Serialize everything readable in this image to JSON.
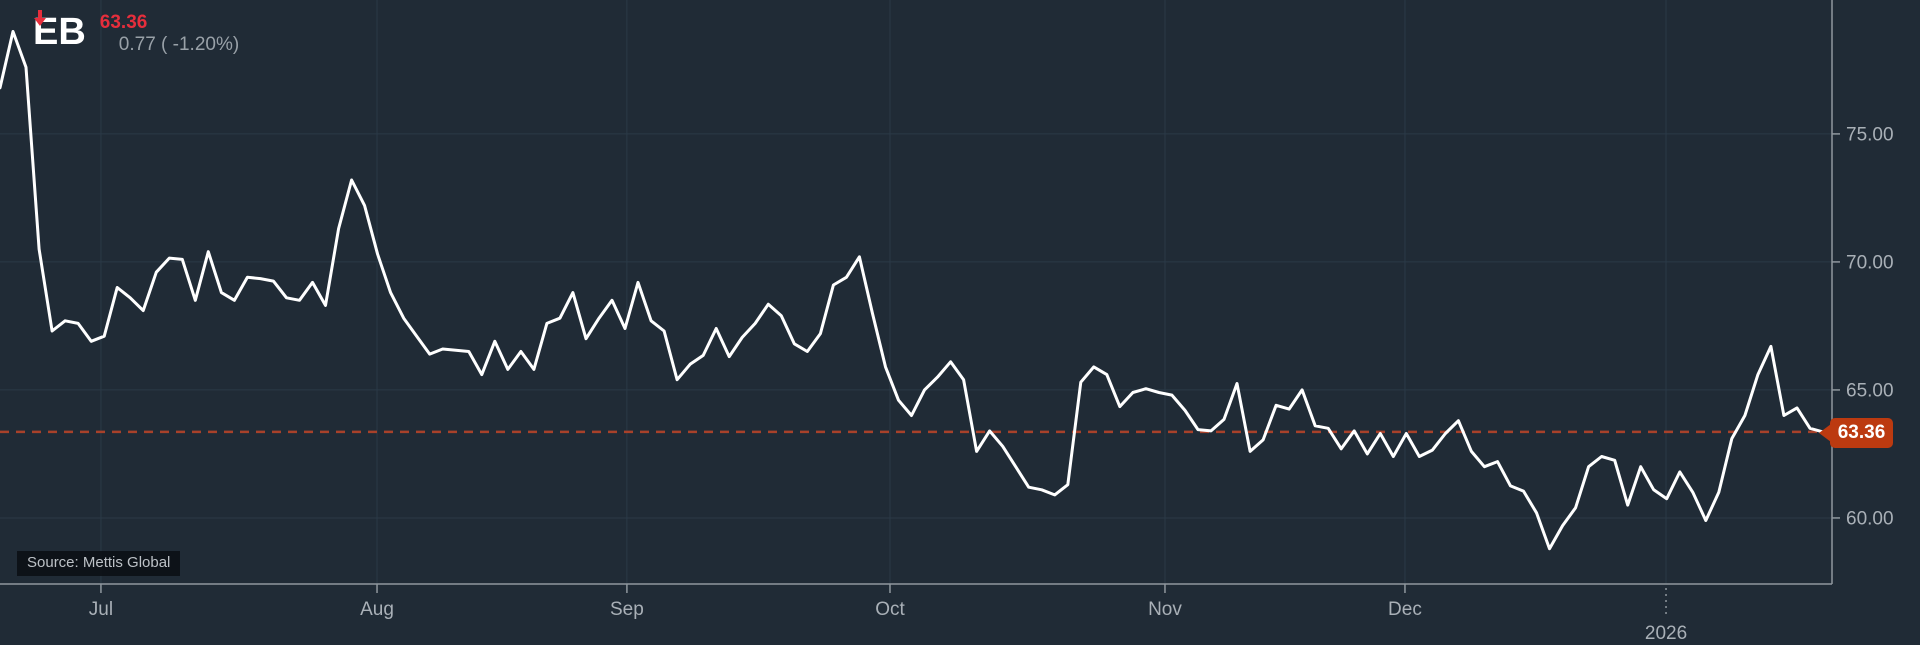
{
  "header": {
    "ticker": "EB",
    "price": "63.36",
    "change": "0.77 ( -1.20%)"
  },
  "source": {
    "label": "Source: Mettis Global"
  },
  "last_price_tag": "63.36",
  "colors": {
    "background": "#202b36",
    "grid": "#2b3a47",
    "axis": "#8f979e",
    "tick_label": "#a9b0b7",
    "series_line": "#ffffff",
    "price_red": "#e62e3c",
    "change_gray": "#99a1a8",
    "dashed_line": "#a8412a",
    "tag_background": "#bc3a10",
    "tag_text": "#ffffff"
  },
  "chart_data": {
    "type": "line",
    "title": "EB",
    "legend": "none",
    "grid": true,
    "y_ticks": [
      {
        "label": "75.00",
        "value": 75
      },
      {
        "label": "70.00",
        "value": 70
      },
      {
        "label": "65.00",
        "value": 65
      },
      {
        "label": "60.00",
        "value": 60
      }
    ],
    "y_range": [
      57.42,
      80.23
    ],
    "x_ticks": [
      {
        "label": "Jul",
        "pos": 0.0551,
        "is_year": false
      },
      {
        "label": "Aug",
        "pos": 0.2058,
        "is_year": false
      },
      {
        "label": "Sep",
        "pos": 0.3422,
        "is_year": false
      },
      {
        "label": "Oct",
        "pos": 0.4858,
        "is_year": false
      },
      {
        "label": "Nov",
        "pos": 0.6359,
        "is_year": false
      },
      {
        "label": "Dec",
        "pos": 0.7669,
        "is_year": false
      },
      {
        "label": "2026",
        "pos": 0.9094,
        "is_year": true
      }
    ],
    "last_price": 63.36,
    "series": [
      {
        "name": "EB",
        "values": [
          76.8,
          79.0,
          77.6,
          70.5,
          67.3,
          67.7,
          67.6,
          66.9,
          67.1,
          69.0,
          68.6,
          68.1,
          69.6,
          70.15,
          70.1,
          68.5,
          70.4,
          68.8,
          68.5,
          69.4,
          69.35,
          69.25,
          68.6,
          68.5,
          69.2,
          68.3,
          71.3,
          73.2,
          72.2,
          70.3,
          68.8,
          67.8,
          67.1,
          66.4,
          66.6,
          66.55,
          66.5,
          65.6,
          66.9,
          65.8,
          66.5,
          65.8,
          67.6,
          67.8,
          68.8,
          67.0,
          67.8,
          68.5,
          67.4,
          69.2,
          67.7,
          67.3,
          65.4,
          66.0,
          66.35,
          67.4,
          66.3,
          67.05,
          67.6,
          68.35,
          67.9,
          66.8,
          66.5,
          67.2,
          69.1,
          69.4,
          70.2,
          68.0,
          65.9,
          64.6,
          64.0,
          65.0,
          65.5,
          66.1,
          65.4,
          62.6,
          63.4,
          62.8,
          62.0,
          61.2,
          61.1,
          60.9,
          61.3,
          65.3,
          65.9,
          65.6,
          64.35,
          64.9,
          65.05,
          64.9,
          64.8,
          64.2,
          63.45,
          63.4,
          63.85,
          65.25,
          62.6,
          63.05,
          64.4,
          64.25,
          65.0,
          63.6,
          63.5,
          62.7,
          63.4,
          62.5,
          63.3,
          62.4,
          63.3,
          62.4,
          62.65,
          63.3,
          63.8,
          62.6,
          62.0,
          62.2,
          61.25,
          61.05,
          60.2,
          58.8,
          59.7,
          60.4,
          62.0,
          62.4,
          62.25,
          60.5,
          62.0,
          61.1,
          60.75,
          61.8,
          61.0,
          59.9,
          61.0,
          63.1,
          64.0,
          65.6,
          66.7,
          64.0,
          64.3,
          63.5,
          63.36
        ]
      }
    ]
  }
}
